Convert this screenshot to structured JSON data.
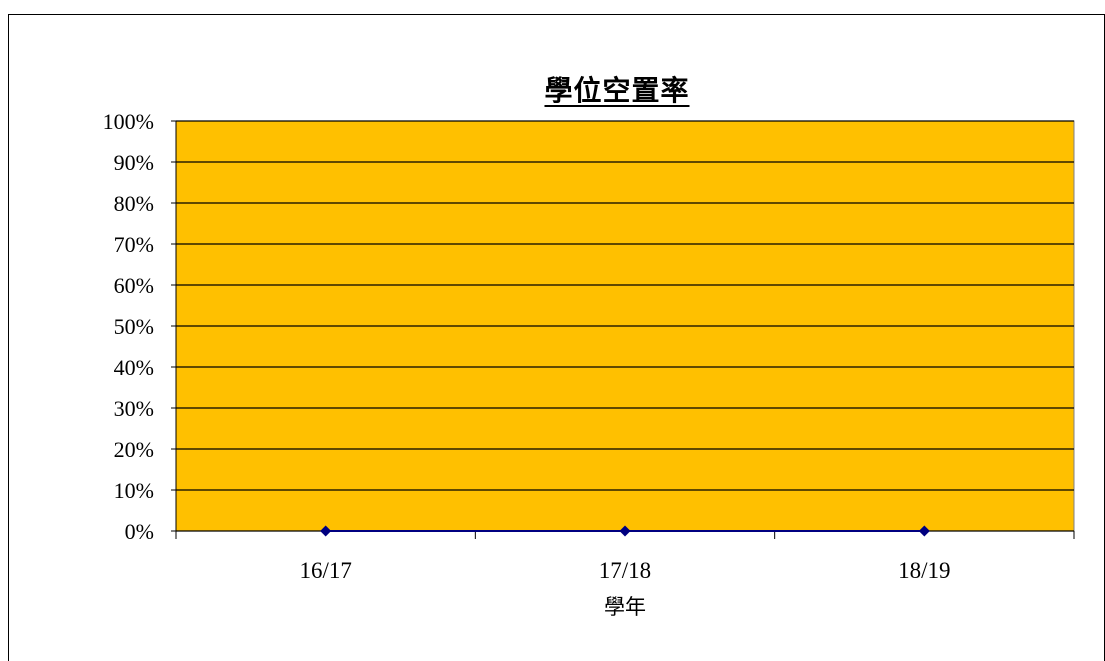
{
  "chart_data": {
    "type": "line",
    "title": "學位空置率",
    "xlabel": "學年",
    "ylabel": "",
    "categories": [
      "16/17",
      "17/18",
      "18/19"
    ],
    "series": [
      {
        "values": [
          0,
          0,
          0
        ],
        "marker": "diamond",
        "color": "#000080"
      }
    ],
    "y_ticks": [
      "0%",
      "10%",
      "20%",
      "30%",
      "40%",
      "50%",
      "60%",
      "70%",
      "80%",
      "90%",
      "100%"
    ],
    "ylim": [
      0,
      1
    ],
    "grid": true,
    "legend": "none",
    "plot_background": "#FFC000"
  }
}
